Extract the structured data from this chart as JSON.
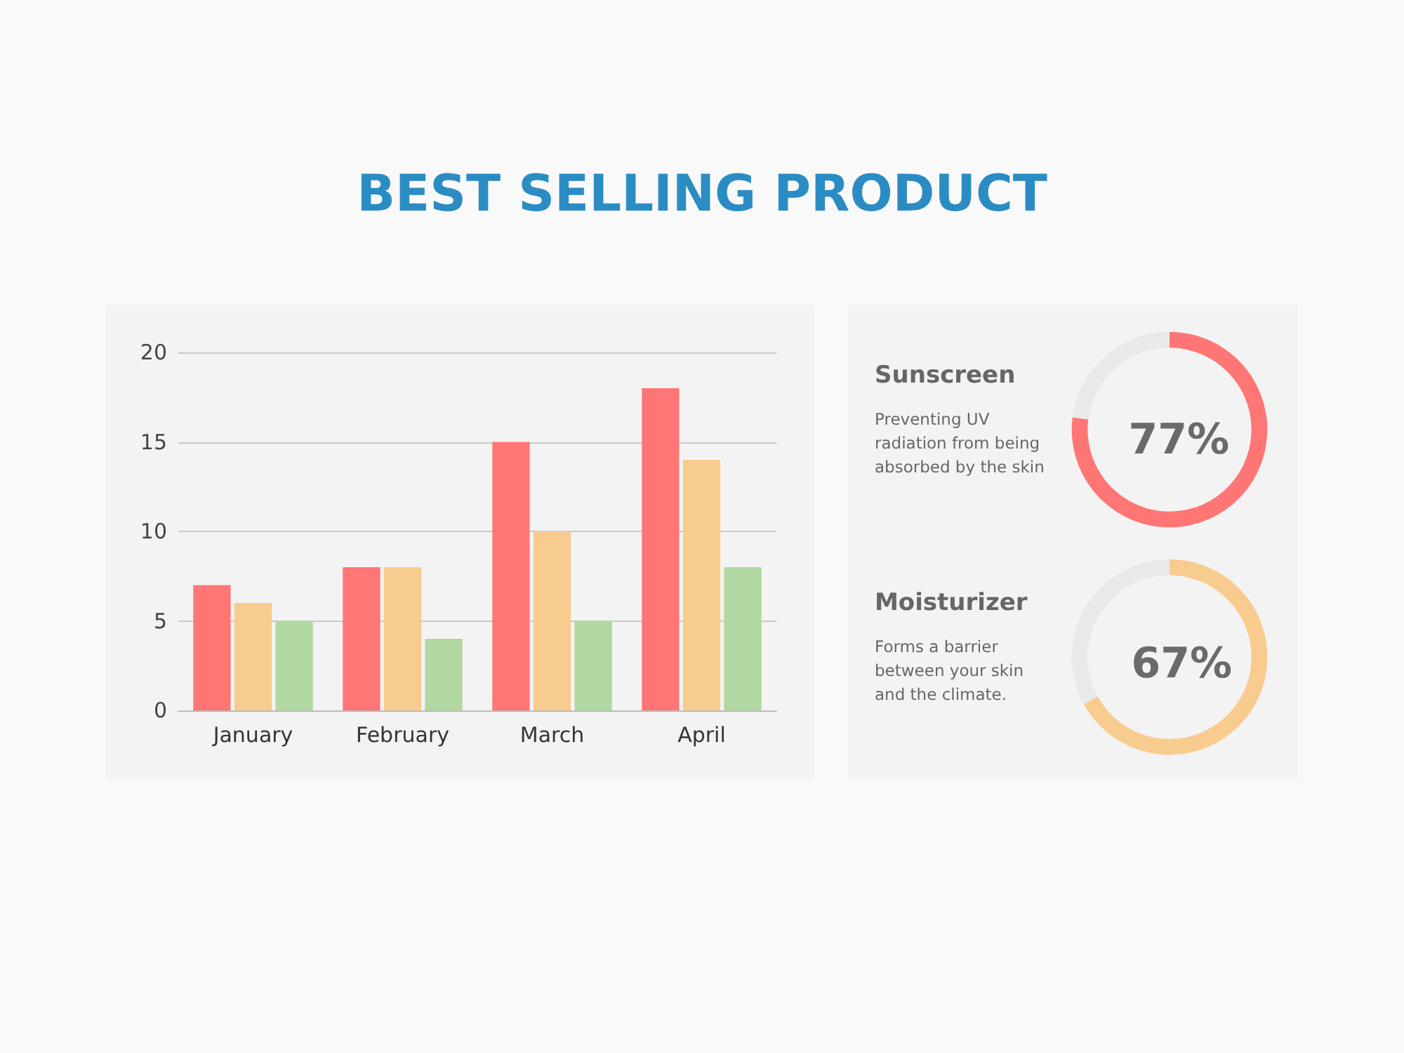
{
  "chart_data": [
    {
      "type": "bar",
      "title": "BEST SELLING PRODUCT",
      "categories": [
        "January",
        "February",
        "March",
        "April"
      ],
      "series": [
        {
          "color": "#ff7675",
          "values": [
            7,
            8,
            15,
            18
          ]
        },
        {
          "color": "#f8cb8f",
          "values": [
            6,
            8,
            10,
            14
          ]
        },
        {
          "color": "#b0d8a0",
          "values": [
            5,
            4,
            5,
            8
          ]
        }
      ],
      "ylim": [
        0,
        20
      ],
      "yticks": [
        0,
        5,
        10,
        15,
        20
      ],
      "grid": "y"
    },
    {
      "type": "donut",
      "title": "Sunscreen",
      "subtitle": "Preventing UV radiation from being absorbed by the skin",
      "categories": [
        null,
        null
      ],
      "values": [
        77,
        23
      ],
      "colors": [
        "#ff7675",
        "#e9e9e9"
      ],
      "value_labels": [
        "77%",
        null
      ]
    },
    {
      "type": "donut",
      "title": "Moisturizer",
      "subtitle": "Forms a barrier between your skin and the climate.",
      "categories": [
        null,
        null
      ],
      "values": [
        67,
        33
      ],
      "colors": [
        "#f8cb8f",
        "#e9e9e9"
      ],
      "value_labels": [
        "67%",
        null
      ]
    }
  ]
}
